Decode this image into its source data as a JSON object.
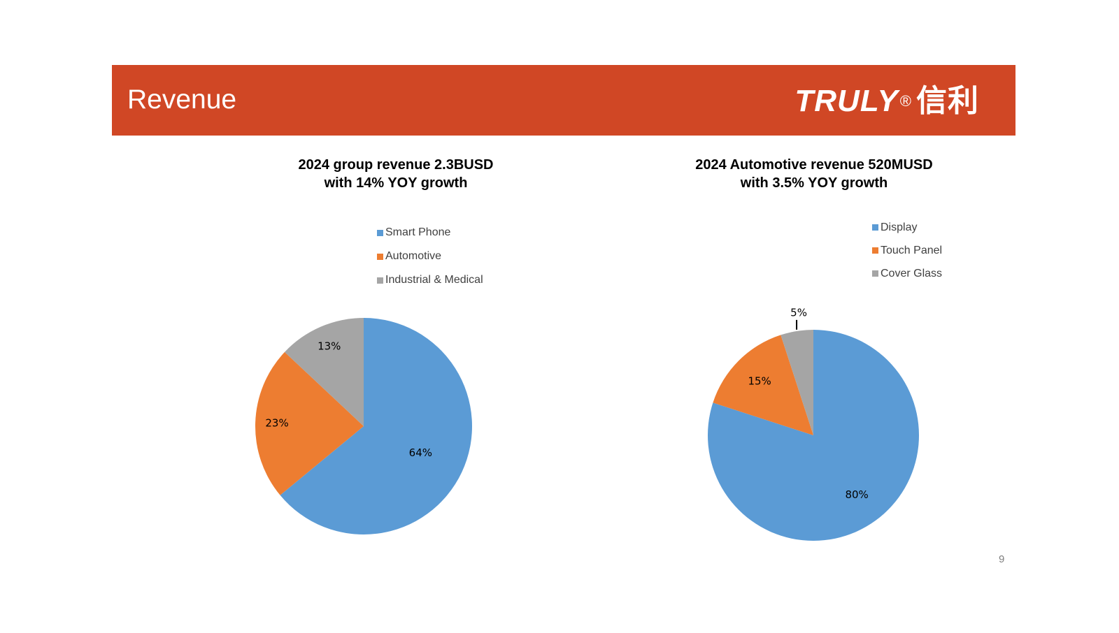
{
  "header": {
    "title": "Revenue",
    "logo_text": "TRULY",
    "logo_registered": "®",
    "logo_cn": "信利",
    "background": "#d04725"
  },
  "page_number": "9",
  "chart_data": [
    {
      "type": "pie",
      "title": "2024 group revenue 2.3BUSD",
      "subtitle": "with 14% YOY growth",
      "legend_position": "top",
      "categories": [
        "Smart Phone",
        "Automotive",
        "Industrial & Medical"
      ],
      "values": [
        64,
        23,
        13
      ],
      "labels": [
        "64%",
        "23%",
        "13%"
      ],
      "colors": [
        "#5b9bd5",
        "#ed7d31",
        "#a5a5a5"
      ]
    },
    {
      "type": "pie",
      "title": "2024 Automotive revenue 520MUSD",
      "subtitle": "with 3.5% YOY growth",
      "legend_position": "top",
      "categories": [
        "Display",
        "Touch Panel",
        "Cover Glass"
      ],
      "values": [
        80,
        15,
        5
      ],
      "labels": [
        "80%",
        "15%",
        "5%"
      ],
      "colors": [
        "#5b9bd5",
        "#ed7d31",
        "#a5a5a5"
      ]
    }
  ]
}
